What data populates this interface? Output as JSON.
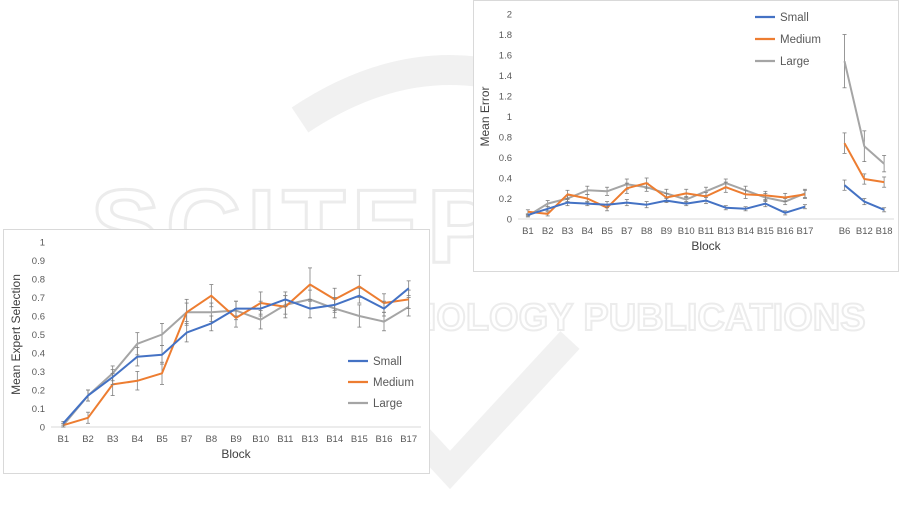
{
  "colors": {
    "small": "#4472c4",
    "medium": "#ed7d31",
    "large": "#a5a5a5",
    "axis_text": "#595959",
    "title_text": "#404040",
    "grid": "#e6e6e6",
    "watermark": "#ececec"
  },
  "watermark": {
    "main": "SCITEPRESS",
    "sub": "SCIENCE AND TECHNOLOGY PUBLICATIONS"
  },
  "chart_data": [
    {
      "type": "line",
      "xlabel": "Block",
      "ylabel": "Mean Expert Selection",
      "ylim": [
        0,
        1
      ],
      "yticks": [
        "0",
        "0.1",
        "0.2",
        "0.3",
        "0.4",
        "0.5",
        "0.6",
        "0.7",
        "0.8",
        "0.9",
        "1"
      ],
      "legend_position": "right",
      "grid": false,
      "categories": [
        "B1",
        "B2",
        "B3",
        "B4",
        "B5",
        "B7",
        "B8",
        "B9",
        "B10",
        "B11",
        "B13",
        "B14",
        "B15",
        "B16",
        "B17"
      ],
      "series": [
        {
          "name": "Small",
          "color_key": "small",
          "values": [
            0.02,
            0.17,
            0.27,
            0.38,
            0.39,
            0.51,
            0.56,
            0.64,
            0.64,
            0.69,
            0.64,
            0.66,
            0.71,
            0.64,
            0.75
          ],
          "errors": [
            0.01,
            0.03,
            0.04,
            0.05,
            0.05,
            0.05,
            0.04,
            0.04,
            0.04,
            0.04,
            0.05,
            0.04,
            0.04,
            0.04,
            0.04
          ]
        },
        {
          "name": "Medium",
          "color_key": "medium",
          "values": [
            0.01,
            0.05,
            0.23,
            0.25,
            0.29,
            0.62,
            0.71,
            0.59,
            0.67,
            0.65,
            0.77,
            0.69,
            0.76,
            0.67,
            0.69
          ],
          "errors": [
            0.01,
            0.03,
            0.06,
            0.05,
            0.06,
            0.07,
            0.06,
            0.05,
            0.06,
            0.06,
            0.09,
            0.06,
            0.06,
            0.05,
            0.05
          ]
        },
        {
          "name": "Large",
          "color_key": "large",
          "values": [
            0.01,
            0.17,
            0.29,
            0.45,
            0.5,
            0.62,
            0.62,
            0.63,
            0.58,
            0.66,
            0.69,
            0.64,
            0.6,
            0.57,
            0.65
          ],
          "errors": [
            0.01,
            0.03,
            0.04,
            0.06,
            0.06,
            0.05,
            0.05,
            0.05,
            0.05,
            0.05,
            0.05,
            0.05,
            0.06,
            0.05,
            0.05
          ]
        }
      ]
    },
    {
      "type": "line",
      "xlabel": "Block",
      "ylabel": "Mean Error",
      "ylim": [
        0,
        2
      ],
      "yticks": [
        "0",
        "0.2",
        "0.4",
        "0.6",
        "0.8",
        "1",
        "1.2",
        "1.4",
        "1.6",
        "1.8",
        "2"
      ],
      "legend_position": "top",
      "grid": false,
      "categories": [
        "B1",
        "B2",
        "B3",
        "B4",
        "B5",
        "B7",
        "B8",
        "B9",
        "B10",
        "B11",
        "B13",
        "B14",
        "B15",
        "B16",
        "B17",
        "",
        "B6",
        "B12",
        "B18"
      ],
      "segments": [
        [
          0,
          14
        ],
        [
          16,
          18
        ]
      ],
      "series": [
        {
          "name": "Small",
          "color_key": "small",
          "values": [
            0.04,
            0.1,
            0.16,
            0.15,
            0.14,
            0.16,
            0.14,
            0.18,
            0.15,
            0.18,
            0.11,
            0.1,
            0.15,
            0.06,
            0.12,
            null,
            0.33,
            0.17,
            0.09
          ],
          "errors": [
            0.01,
            0.02,
            0.03,
            0.02,
            0.03,
            0.03,
            0.03,
            0.02,
            0.02,
            0.03,
            0.02,
            0.02,
            0.03,
            0.02,
            0.02,
            null,
            0.05,
            0.03,
            0.02
          ]
        },
        {
          "name": "Medium",
          "color_key": "medium",
          "values": [
            0.07,
            0.05,
            0.24,
            0.2,
            0.11,
            0.3,
            0.35,
            0.21,
            0.25,
            0.22,
            0.31,
            0.24,
            0.23,
            0.21,
            0.24,
            null,
            0.74,
            0.39,
            0.36
          ],
          "errors": [
            0.02,
            0.02,
            0.04,
            0.04,
            0.03,
            0.05,
            0.05,
            0.04,
            0.04,
            0.04,
            0.05,
            0.04,
            0.04,
            0.04,
            0.04,
            null,
            0.1,
            0.05,
            0.05
          ]
        },
        {
          "name": "Large",
          "color_key": "large",
          "values": [
            0.03,
            0.15,
            0.2,
            0.28,
            0.27,
            0.34,
            0.31,
            0.25,
            0.19,
            0.27,
            0.35,
            0.28,
            0.21,
            0.17,
            0.25,
            null,
            1.54,
            0.71,
            0.54
          ],
          "errors": [
            0.01,
            0.03,
            0.03,
            0.04,
            0.04,
            0.05,
            0.04,
            0.04,
            0.03,
            0.04,
            0.04,
            0.04,
            0.04,
            0.03,
            0.04,
            null,
            0.26,
            0.15,
            0.08
          ]
        }
      ]
    }
  ]
}
